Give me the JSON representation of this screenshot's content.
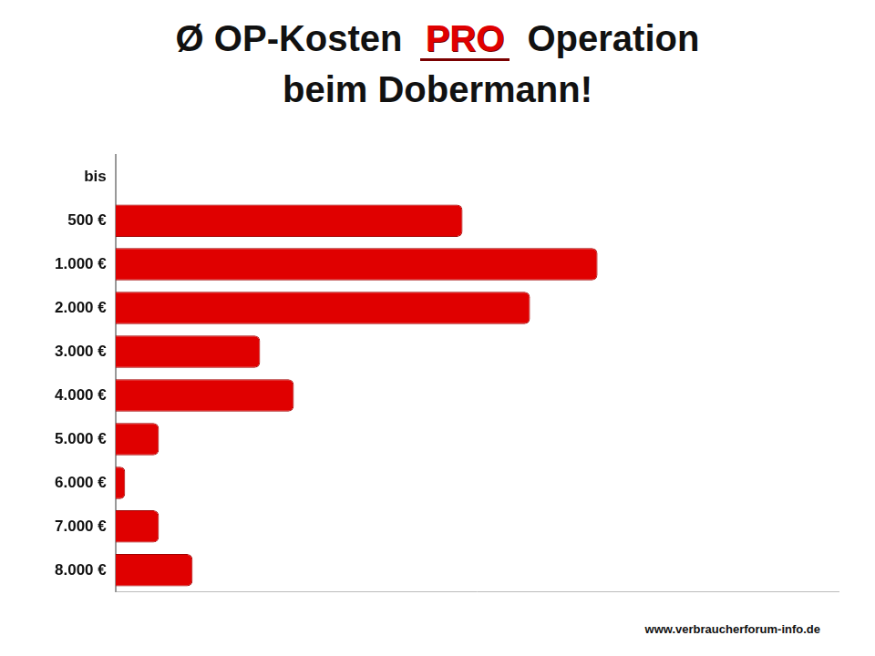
{
  "chart_data": {
    "type": "bar",
    "title": [
      "Ø OP-Kosten PRO Operation",
      "beim Dobermann!"
    ],
    "categories": [
      "bis",
      "500 €",
      "1.000 €",
      "2.000 €",
      "3.000 €",
      "4.000 €",
      "5.000 €",
      "6.000 €",
      "7.000 €",
      "8.000 €"
    ],
    "values": [
      null,
      72,
      100,
      86,
      30,
      37,
      9,
      2,
      9,
      16
    ],
    "color": "#e00000",
    "orientation": "horizontal",
    "xlim": [
      0,
      150
    ],
    "tick_labels": "y",
    "grid": false,
    "source": "www.verbraucherforum-info.de"
  }
}
